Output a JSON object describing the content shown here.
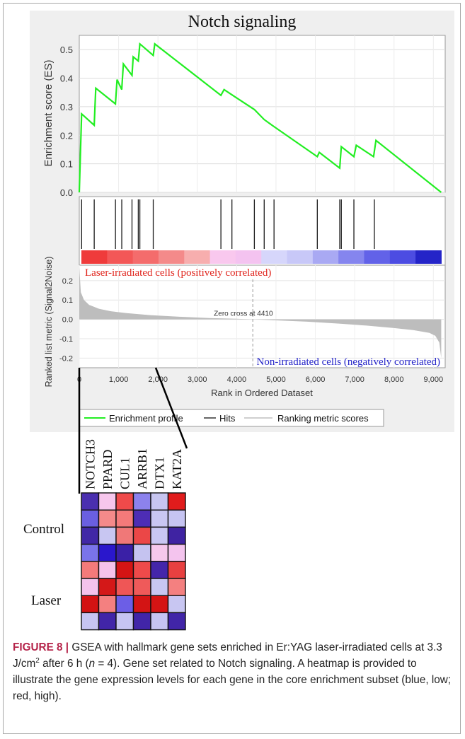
{
  "chart_data": [
    {
      "type": "line",
      "title": "Notch signaling",
      "ylabel": "Enrichment score (ES)",
      "yticks": [
        "0.0",
        "0.1",
        "0.2",
        "0.3",
        "0.4",
        "0.5"
      ],
      "ylim": [
        0,
        0.55
      ],
      "xlim": [
        0,
        9300
      ],
      "grid": true,
      "series": [
        {
          "name": "Enrichment profile",
          "color": "#22ee22",
          "x": [
            0,
            60,
            380,
            420,
            920,
            960,
            1080,
            1120,
            1340,
            1370,
            1500,
            1540,
            1880,
            1920,
            3600,
            3680,
            3900,
            4450,
            4700,
            4900,
            6050,
            6100,
            6620,
            6660,
            6980,
            7040,
            7480,
            7540,
            9200
          ],
          "y": [
            0,
            0.275,
            0.235,
            0.365,
            0.31,
            0.395,
            0.36,
            0.45,
            0.41,
            0.475,
            0.46,
            0.52,
            0.48,
            0.52,
            0.34,
            0.36,
            0.34,
            0.29,
            0.255,
            0.235,
            0.125,
            0.14,
            0.085,
            0.16,
            0.125,
            0.165,
            0.125,
            0.182,
            0.0
          ]
        }
      ]
    },
    {
      "type": "hits",
      "hits": [
        60,
        380,
        920,
        1080,
        1340,
        1500,
        1540,
        1880,
        3600,
        3880,
        4450,
        4700,
        4950,
        6050,
        6620,
        6660,
        6980,
        7500
      ],
      "gradient": [
        "#ef3b3b",
        "#f35757",
        "#f46c6c",
        "#f48a8a",
        "#f7aeae",
        "#f9c8ee",
        "#f4c3f0",
        "#d6d6fb",
        "#c8c8f8",
        "#a9a9f3",
        "#8585ee",
        "#6262e8",
        "#4c4ce2",
        "#2424c8"
      ]
    },
    {
      "type": "area",
      "ylabel": "Ranked list metric (Signal2Noise)",
      "xlabel": "Rank in Ordered Dataset",
      "xticks": [
        "0",
        "1,000",
        "2,000",
        "3,000",
        "4,000",
        "5,000",
        "6,000",
        "7,000",
        "8,000",
        "9,000"
      ],
      "yticks": [
        "0.2",
        "0.1",
        "0.0",
        "-0.1",
        "-0.2"
      ],
      "ylim": [
        -0.25,
        0.28
      ],
      "xlim": [
        0,
        9300
      ],
      "zero_cross": 4410,
      "zero_cross_label": "Zero cross at 4410",
      "top_label": "Laser-irradiated cells (positively correlated)",
      "bottom_label": "Non-irradiated cells (negatively correlated)",
      "fill_color": "#bdbdbd",
      "x": [
        0,
        40,
        120,
        250,
        500,
        800,
        1200,
        1800,
        2500,
        3300,
        4000,
        4410,
        5000,
        5800,
        6600,
        7300,
        8000,
        8500,
        8900,
        9050,
        9150,
        9200
      ],
      "y": [
        0.27,
        0.14,
        0.1,
        0.075,
        0.055,
        0.042,
        0.032,
        0.022,
        0.014,
        0.007,
        0.003,
        0.0,
        -0.005,
        -0.012,
        -0.022,
        -0.032,
        -0.045,
        -0.056,
        -0.07,
        -0.085,
        -0.12,
        -0.2
      ]
    },
    {
      "type": "heatmap",
      "genes": [
        "NOTCH3",
        "PPARD",
        "CUL1",
        "ARRB1",
        "DTX1",
        "KAT2A"
      ],
      "row_groups": [
        "Control",
        "Laser"
      ],
      "rows": [
        [
          "#4a2faf",
          "#f6c6ec",
          "#ef4a4a",
          "#8c82ec",
          "#c7c5f0",
          "#e11c1c"
        ],
        [
          "#6a5fe0",
          "#f48a8a",
          "#f47a7a",
          "#4d2db5",
          "#c9c7f2",
          "#c6c4f2"
        ],
        [
          "#4128a6",
          "#c8c6f2",
          "#f07878",
          "#eb4747",
          "#c9c7f2",
          "#3f23a2"
        ],
        [
          "#7a74ea",
          "#2a17cc",
          "#3a20a6",
          "#c5c3f0",
          "#f6c8ec",
          "#f4c4ee"
        ],
        [
          "#f47a7a",
          "#f6c3ea",
          "#d41414",
          "#ee4a4a",
          "#4426aa",
          "#e84040"
        ],
        [
          "#f4c3ec",
          "#d41818",
          "#ef5656",
          "#ef5a5a",
          "#c8c6f2",
          "#f48080"
        ],
        [
          "#d31212",
          "#f48080",
          "#6c5ee6",
          "#d31414",
          "#d41414",
          "#c8c6f2"
        ],
        [
          "#c6c4f2",
          "#4125a8",
          "#c6c4f2",
          "#4125a8",
          "#c6c4f2",
          "#4125a8"
        ]
      ]
    }
  ],
  "legend": {
    "enrichment": "Enrichment profile",
    "hits": "Hits",
    "metric": "Ranking metric scores"
  },
  "caption": {
    "lead": "FIGURE 8 |",
    "t1": " GSEA with hallmark gene sets enriched in Er:YAG laser-irradiated cells at 3.3 J/cm",
    "sup": "2",
    "t2": " after 6 h (",
    "n": "n",
    "t3": " = 4). Gene set related to Notch signaling. A heatmap is provided to illustrate the gene expression levels for each gene in the core enrichment subset (blue, low; red, high)."
  }
}
